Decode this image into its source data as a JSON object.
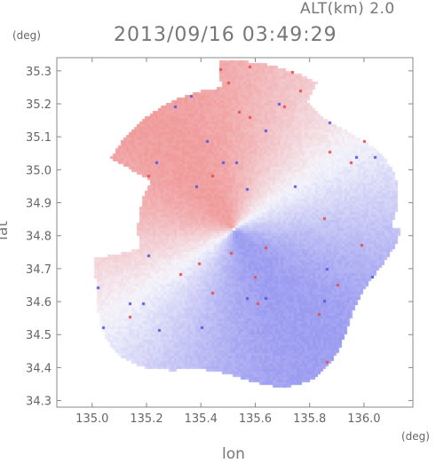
{
  "header": {
    "altitude_label": "ALT(km) 2.0",
    "datetime": "2013/09/16 03:49:29"
  },
  "axes": {
    "y_unit": "(deg)",
    "x_unit": "(deg)",
    "y_label": "lat",
    "x_label": "lon"
  },
  "chart_data": {
    "type": "heatmap",
    "title": "2013/09/16 03:49:29",
    "subtitle": "ALT(km) 2.0",
    "xlabel": "lon",
    "ylabel": "lat",
    "xunit": "(deg)",
    "yunit": "(deg)",
    "xlim": [
      134.87,
      136.18
    ],
    "ylim": [
      34.28,
      35.34
    ],
    "x_ticks": [
      135.0,
      135.2,
      135.4,
      135.6,
      135.8,
      136.0
    ],
    "x_tick_labels": [
      "135.0",
      "135.2",
      "135.4",
      "135.6",
      "135.8",
      "136.0"
    ],
    "y_ticks": [
      34.3,
      34.4,
      34.5,
      34.6,
      34.7,
      34.8,
      34.9,
      35.0,
      35.1,
      35.2,
      35.3
    ],
    "y_tick_labels": [
      "34.3",
      "34.4",
      "34.5",
      "34.6",
      "34.7",
      "34.8",
      "34.9",
      "35.0",
      "35.1",
      "35.2",
      "35.3"
    ],
    "radar_center": {
      "lon": 135.52,
      "lat": 34.82
    },
    "radar_range_deg_lat": 0.5,
    "colors": {
      "toward": "#f19a9a",
      "away": "#9a9af1",
      "neutral": "#f4f4fb"
    },
    "grid": false,
    "legend": "none"
  }
}
